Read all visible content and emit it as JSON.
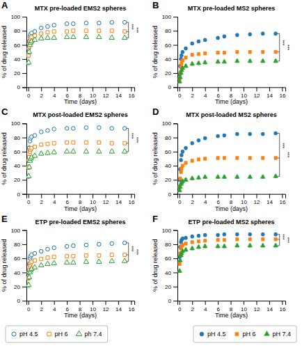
{
  "chart_data": [
    {
      "type": "scatter",
      "title": "MTX pre-loaded EMS2 spheres",
      "x_label": "Time (days)",
      "y_label": "% of drug released",
      "x": [
        0.042,
        0.125,
        0.25,
        0.333,
        0.5,
        1,
        2,
        3,
        4,
        6,
        7,
        9,
        11,
        13,
        15
      ],
      "series": [
        {
          "name": "pH 4.5",
          "marker": "circle-open",
          "values": [
            55,
            65,
            72,
            75,
            77,
            79,
            84,
            86,
            88,
            90,
            90,
            91,
            91,
            92,
            92
          ],
          "errors": [
            3,
            3,
            2,
            2,
            2,
            2,
            2,
            2,
            2,
            2,
            2,
            2,
            2,
            2,
            2
          ]
        },
        {
          "name": "pH 6",
          "marker": "square-open",
          "values": [
            45,
            58,
            66,
            69,
            71,
            73,
            76,
            78,
            79,
            79,
            80,
            80,
            80,
            80,
            79
          ],
          "errors": [
            3,
            3,
            2,
            2,
            2,
            2,
            2,
            2,
            2,
            2,
            2,
            2,
            2,
            2,
            2
          ]
        },
        {
          "name": "ph 7.4",
          "marker": "triangle-open",
          "values": [
            35,
            50,
            60,
            63,
            65,
            67,
            69,
            70,
            70,
            71,
            71,
            71,
            71,
            70,
            70
          ],
          "errors": [
            3,
            3,
            2,
            2,
            2,
            2,
            2,
            2,
            2,
            2,
            2,
            2,
            2,
            2,
            2
          ]
        }
      ],
      "annotations": [
        {
          "text": "A"
        },
        {
          "text": "***",
          "y": [
            92,
            79
          ]
        },
        {
          "text": "***",
          "y": [
            92,
            70
          ]
        }
      ],
      "xlim": [
        -0.3,
        16.5
      ],
      "xticks": [
        0,
        2,
        4,
        6,
        8,
        10,
        12,
        14,
        16
      ],
      "ylim": [
        0,
        100
      ],
      "yticks": [
        0,
        20,
        40,
        60,
        80,
        100
      ],
      "grid": false,
      "legend": "lower left"
    },
    {
      "type": "scatter",
      "title": "MTX pre-loaded MS2 spheres",
      "x_label": "Time (days)",
      "y_label": "% of drug released",
      "x": [
        0.042,
        0.125,
        0.25,
        0.333,
        0.5,
        1,
        2,
        3,
        4,
        6,
        7,
        9,
        11,
        13,
        15
      ],
      "series": [
        {
          "name": "pH 4.5",
          "marker": "circle",
          "values": [
            18,
            30,
            40,
            45,
            50,
            55,
            62,
            65,
            67,
            70,
            72,
            74,
            75,
            76,
            76
          ],
          "errors": [
            2,
            2,
            2,
            2,
            2,
            2,
            2,
            2,
            2,
            2,
            2,
            2,
            2,
            2,
            2
          ]
        },
        {
          "name": "pH 6",
          "marker": "square",
          "values": [
            12,
            20,
            29,
            34,
            38,
            42,
            46,
            47,
            48,
            49,
            49,
            50,
            50,
            50,
            50
          ],
          "errors": [
            2,
            2,
            2,
            2,
            2,
            2,
            2,
            2,
            2,
            2,
            2,
            2,
            2,
            2,
            2
          ]
        },
        {
          "name": "pH 7.4",
          "marker": "triangle",
          "values": [
            8,
            14,
            20,
            24,
            27,
            30,
            33,
            34,
            35,
            36,
            36,
            37,
            37,
            37,
            37
          ],
          "errors": [
            2,
            2,
            2,
            2,
            2,
            2,
            2,
            2,
            2,
            2,
            2,
            2,
            2,
            2,
            2
          ]
        }
      ],
      "annotations": [
        {
          "text": "B"
        },
        {
          "text": "***",
          "y": [
            76,
            50
          ]
        },
        {
          "text": "***",
          "y": [
            76,
            37
          ]
        }
      ],
      "xlim": [
        -0.3,
        16.5
      ],
      "xticks": [
        0,
        2,
        4,
        6,
        8,
        10,
        12,
        14,
        16
      ],
      "ylim": [
        0,
        100
      ],
      "yticks": [
        0,
        20,
        40,
        60,
        80,
        100
      ],
      "grid": false,
      "legend": "lower right"
    },
    {
      "type": "scatter",
      "title": "MTX post-loaded EMS2 spheres",
      "x_label": "Time (days)",
      "y_label": "% of drug released",
      "x": [
        0.042,
        0.125,
        0.25,
        0.333,
        0.5,
        1,
        2,
        3,
        4,
        6,
        7,
        9,
        11,
        13,
        15
      ],
      "series": [
        {
          "marker": "circle-open",
          "values": [
            48,
            65,
            75,
            79,
            81,
            83,
            88,
            90,
            92,
            93,
            93,
            94,
            94,
            93,
            93
          ],
          "errors": [
            3,
            3,
            2,
            2,
            2,
            2,
            2,
            2,
            2,
            2,
            2,
            2,
            2,
            2,
            2
          ]
        },
        {
          "marker": "square-open",
          "values": [
            38,
            52,
            60,
            63,
            65,
            67,
            70,
            71,
            72,
            73,
            73,
            73,
            73,
            72,
            72
          ],
          "errors": [
            3,
            3,
            2,
            2,
            2,
            2,
            2,
            2,
            2,
            2,
            2,
            2,
            2,
            2,
            2
          ]
        },
        {
          "marker": "triangle-open",
          "values": [
            25,
            38,
            47,
            50,
            52,
            54,
            57,
            58,
            59,
            60,
            60,
            60,
            60,
            60,
            60
          ],
          "errors": [
            3,
            3,
            2,
            2,
            2,
            2,
            2,
            2,
            2,
            2,
            2,
            2,
            2,
            2,
            2
          ]
        }
      ],
      "annotations": [
        {
          "text": "C"
        },
        {
          "text": "***",
          "y": [
            93,
            72
          ]
        },
        {
          "text": "***",
          "y": [
            93,
            60
          ]
        }
      ],
      "xlim": [
        -0.3,
        16.5
      ],
      "xticks": [
        0,
        2,
        4,
        6,
        8,
        10,
        12,
        14,
        16
      ],
      "ylim": [
        0,
        100
      ],
      "yticks": [
        0,
        20,
        40,
        60,
        80,
        100
      ],
      "grid": false
    },
    {
      "type": "scatter",
      "title": "MTX post-loaded MS2 spheres",
      "x_label": "Time (days)",
      "y_label": "% of drug released",
      "x": [
        0.042,
        0.125,
        0.25,
        0.333,
        0.5,
        1,
        2,
        3,
        4,
        6,
        7,
        9,
        11,
        13,
        15
      ],
      "series": [
        {
          "marker": "circle",
          "values": [
            20,
            35,
            48,
            55,
            60,
            65,
            72,
            76,
            79,
            82,
            83,
            85,
            85,
            85,
            86
          ],
          "errors": [
            2,
            2,
            2,
            2,
            2,
            2,
            2,
            2,
            2,
            2,
            2,
            2,
            2,
            2,
            2
          ]
        },
        {
          "marker": "square",
          "values": [
            10,
            22,
            31,
            36,
            40,
            44,
            47,
            49,
            50,
            51,
            51,
            51,
            51,
            51,
            51
          ],
          "errors": [
            2,
            2,
            2,
            2,
            2,
            2,
            2,
            2,
            2,
            2,
            2,
            2,
            2,
            2,
            2
          ]
        },
        {
          "marker": "triangle",
          "values": [
            5,
            10,
            14,
            16,
            18,
            20,
            22,
            23,
            24,
            24,
            24,
            24,
            24,
            24,
            25
          ],
          "errors": [
            2,
            2,
            2,
            2,
            2,
            2,
            2,
            2,
            2,
            2,
            2,
            2,
            2,
            2,
            2
          ]
        }
      ],
      "annotations": [
        {
          "text": "D"
        },
        {
          "text": "***",
          "y": [
            86,
            51
          ]
        },
        {
          "text": "***",
          "y": [
            86,
            25
          ]
        }
      ],
      "xlim": [
        -0.3,
        16.5
      ],
      "xticks": [
        0,
        2,
        4,
        6,
        8,
        10,
        12,
        14,
        16
      ],
      "ylim": [
        0,
        100
      ],
      "yticks": [
        0,
        20,
        40,
        60,
        80,
        100
      ],
      "grid": false
    },
    {
      "type": "scatter",
      "title": "ETP pre-loaded EMS2 spheres",
      "x_label": "Time (days)",
      "y_label": "% of drug released",
      "x": [
        0.042,
        0.125,
        0.25,
        0.333,
        0.5,
        1,
        2,
        3,
        4,
        6,
        7,
        9,
        11,
        13,
        15
      ],
      "series": [
        {
          "marker": "circle-open",
          "values": [
            40,
            52,
            60,
            63,
            65,
            67,
            70,
            73,
            75,
            77,
            78,
            79,
            80,
            81,
            82
          ],
          "errors": [
            3,
            3,
            2,
            2,
            2,
            2,
            2,
            2,
            2,
            2,
            2,
            2,
            2,
            2,
            2
          ]
        },
        {
          "marker": "square-open",
          "values": [
            32,
            43,
            50,
            53,
            55,
            57,
            59,
            61,
            62,
            63,
            63,
            64,
            64,
            65,
            65
          ],
          "errors": [
            3,
            3,
            2,
            2,
            2,
            2,
            2,
            2,
            2,
            2,
            2,
            2,
            2,
            2,
            2
          ]
        },
        {
          "marker": "triangle-open",
          "values": [
            22,
            33,
            40,
            43,
            45,
            47,
            50,
            52,
            53,
            54,
            54,
            55,
            55,
            56,
            56
          ],
          "errors": [
            3,
            3,
            2,
            2,
            2,
            2,
            2,
            2,
            2,
            2,
            2,
            2,
            2,
            2,
            2
          ]
        }
      ],
      "annotations": [
        {
          "text": "E"
        },
        {
          "text": "***",
          "y": [
            82,
            65
          ]
        },
        {
          "text": "***",
          "y": [
            82,
            56
          ]
        }
      ],
      "xlim": [
        -0.3,
        16.5
      ],
      "xticks": [
        0,
        2,
        4,
        6,
        8,
        10,
        12,
        14,
        16
      ],
      "ylim": [
        0,
        100
      ],
      "yticks": [
        0,
        20,
        40,
        60,
        80,
        100
      ],
      "grid": false
    },
    {
      "type": "scatter",
      "title": "ETP pre-loaded MS2 spheres",
      "x_label": "Time (days)",
      "y_label": "% of drug released",
      "x": [
        0.042,
        0.125,
        0.25,
        0.333,
        0.5,
        1,
        2,
        3,
        4,
        6,
        7,
        9,
        11,
        13,
        15
      ],
      "series": [
        {
          "marker": "circle",
          "values": [
            62,
            76,
            83,
            86,
            88,
            89,
            91,
            92,
            93,
            93,
            94,
            94,
            94,
            94,
            94
          ],
          "errors": [
            2,
            2,
            2,
            2,
            2,
            2,
            2,
            2,
            2,
            2,
            2,
            2,
            2,
            2,
            2
          ]
        },
        {
          "marker": "square",
          "values": [
            52,
            67,
            74,
            77,
            79,
            81,
            83,
            84,
            85,
            86,
            86,
            87,
            87,
            87,
            87
          ],
          "errors": [
            2,
            2,
            2,
            2,
            2,
            2,
            2,
            2,
            2,
            2,
            2,
            2,
            2,
            2,
            2
          ]
        },
        {
          "marker": "triangle",
          "values": [
            42,
            57,
            64,
            67,
            70,
            72,
            74,
            76,
            77,
            77,
            77,
            78,
            78,
            78,
            78
          ],
          "errors": [
            2,
            2,
            2,
            2,
            2,
            2,
            2,
            2,
            2,
            2,
            2,
            2,
            2,
            2,
            2
          ]
        }
      ],
      "annotations": [
        {
          "text": "F"
        },
        {
          "text": "***",
          "y": [
            94,
            87
          ]
        },
        {
          "text": "***",
          "y": [
            94,
            78
          ]
        }
      ],
      "xlim": [
        -0.3,
        16.5
      ],
      "xticks": [
        0,
        2,
        4,
        6,
        8,
        10,
        12,
        14,
        16
      ],
      "ylim": [
        0,
        100
      ],
      "yticks": [
        0,
        20,
        40,
        60,
        80,
        100
      ],
      "grid": false
    }
  ]
}
